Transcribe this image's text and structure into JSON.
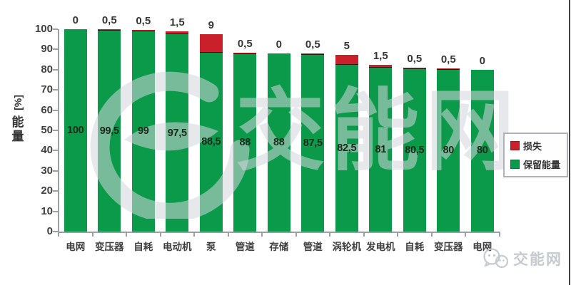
{
  "colors": {
    "retained_green": "#0a9a4a",
    "loss_red": "#c9202b",
    "loss_red_dark_edge": "#2b1a12",
    "axis_gray": "#9aa0a6",
    "watermark_gray": "#d2d6dc",
    "edge_line_dark": "#434343"
  },
  "chart_data": {
    "type": "bar",
    "stacked": true,
    "title": "",
    "ylabel": "能量 [%]",
    "xlabel": "",
    "ylim": [
      0,
      100
    ],
    "yticks": [
      0,
      10,
      20,
      30,
      40,
      50,
      60,
      70,
      80,
      90,
      100
    ],
    "grid": false,
    "legend_position": "right",
    "categories": [
      "电网",
      "变压器",
      "自耗",
      "电动机",
      "泵",
      "管道",
      "存储",
      "管道",
      "涡轮机",
      "发电机",
      "自耗",
      "变压器",
      "电网"
    ],
    "series": [
      {
        "name": "保留能量",
        "color": "#0a9a4a",
        "values": [
          100,
          99.5,
          99,
          97.5,
          88.5,
          88,
          88,
          87.5,
          82.5,
          81,
          80.5,
          80,
          80
        ],
        "labels": [
          "100",
          "99,5",
          "99",
          "97,5",
          "88,5",
          "88",
          "88",
          "87,5",
          "82,5",
          "81",
          "80,5",
          "80",
          "80"
        ]
      },
      {
        "name": "损失",
        "color": "#c9202b",
        "values": [
          0,
          0.5,
          0.5,
          1.5,
          9,
          0.5,
          0,
          0.5,
          5,
          1.5,
          0.5,
          0.5,
          0
        ],
        "labels": [
          "0",
          "0,5",
          "0,5",
          "1,5",
          "9",
          "0,5",
          "0",
          "0,5",
          "5",
          "1,5",
          "0,5",
          "0,5",
          "0"
        ]
      }
    ],
    "legend": [
      {
        "label": "损失",
        "color": "#c9202b"
      },
      {
        "label": "保留能量",
        "color": "#0a9a4a"
      }
    ]
  },
  "watermark": {
    "center_text": "交能网"
  },
  "footer_logo": {
    "text": "交能网"
  }
}
